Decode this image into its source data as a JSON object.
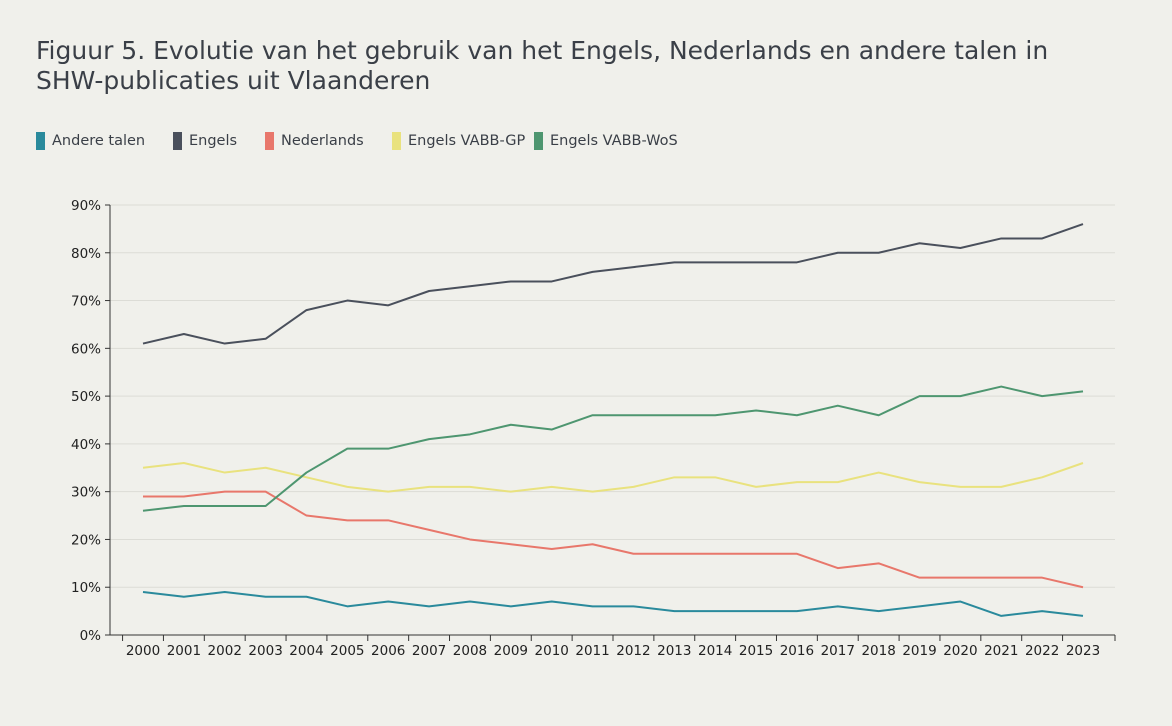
{
  "chart_data": {
    "type": "line",
    "title": "Figuur 5. Evolutie van het gebruik van het Engels, Nederlands en andere talen in SHW-publicaties uit Vlaanderen",
    "xlabel": "",
    "ylabel": "",
    "ylim": [
      0,
      90
    ],
    "yticks": [
      "0%",
      "10%",
      "20%",
      "30%",
      "40%",
      "50%",
      "60%",
      "70%",
      "80%",
      "90%"
    ],
    "grid": true,
    "legend_position": "top-left",
    "x": [
      2000,
      2001,
      2002,
      2003,
      2004,
      2005,
      2006,
      2007,
      2008,
      2009,
      2010,
      2011,
      2012,
      2013,
      2014,
      2015,
      2016,
      2017,
      2018,
      2019,
      2020,
      2021,
      2022,
      2023
    ],
    "series": [
      {
        "name": "Andere talen",
        "color": "#2a8a9c",
        "values": [
          9,
          8,
          9,
          8,
          8,
          6,
          7,
          6,
          7,
          6,
          7,
          6,
          6,
          5,
          5,
          5,
          5,
          6,
          5,
          6,
          7,
          4,
          5,
          4
        ]
      },
      {
        "name": "Engels",
        "color": "#4a505c",
        "values": [
          61,
          63,
          61,
          62,
          68,
          70,
          69,
          72,
          73,
          74,
          74,
          76,
          77,
          78,
          78,
          78,
          78,
          80,
          80,
          82,
          81,
          83,
          83,
          86
        ]
      },
      {
        "name": "Nederlands",
        "color": "#e8776b",
        "values": [
          29,
          29,
          30,
          30,
          25,
          24,
          24,
          22,
          20,
          19,
          18,
          19,
          17,
          17,
          17,
          17,
          17,
          14,
          15,
          12,
          12,
          12,
          12,
          10
        ]
      },
      {
        "name": "Engels VABB-GP",
        "color": "#e9e27e",
        "values": [
          35,
          36,
          34,
          35,
          33,
          31,
          30,
          31,
          31,
          30,
          31,
          30,
          31,
          33,
          33,
          31,
          32,
          32,
          34,
          32,
          31,
          31,
          33,
          36
        ]
      },
      {
        "name": "Engels VABB-WoS",
        "color": "#4e9670",
        "values": [
          26,
          27,
          27,
          27,
          34,
          39,
          39,
          41,
          42,
          44,
          43,
          46,
          46,
          46,
          46,
          47,
          46,
          48,
          46,
          50,
          50,
          52,
          50,
          51
        ]
      }
    ]
  }
}
